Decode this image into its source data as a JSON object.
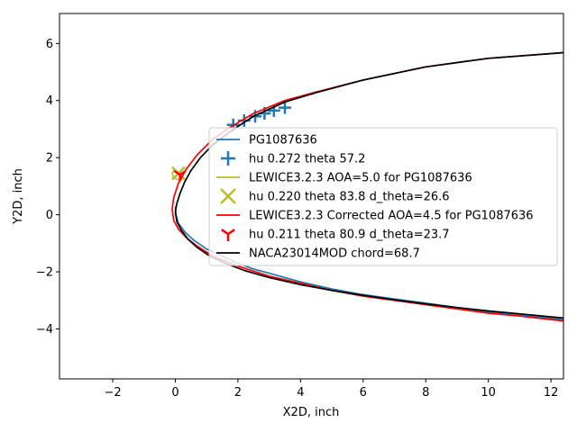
{
  "chart_data": {
    "type": "line",
    "title": "",
    "xlabel": "X2D, inch",
    "ylabel": "Y2D, inch",
    "xlim": [
      -3.7,
      12.4
    ],
    "ylim": [
      -5.75,
      7.05
    ],
    "xticks": [
      -2,
      0,
      2,
      4,
      6,
      8,
      10,
      12
    ],
    "yticks": [
      -4,
      -2,
      0,
      2,
      4,
      6
    ],
    "grid": false,
    "legend_position": "center-right",
    "series": [
      {
        "name": "PG1087636",
        "style": "line",
        "color": "#1f77b4",
        "x": [
          0.0,
          0.02,
          0.1,
          0.3,
          0.6,
          1.0,
          1.5,
          2.0,
          2.5,
          3.0,
          3.5,
          4.0,
          5.0,
          6.0,
          7.0,
          8.0,
          9.0,
          10.0,
          11.0,
          12.4
        ],
        "y": [
          0.3,
          0.0,
          -0.3,
          -0.6,
          -0.9,
          -1.2,
          -1.45,
          -1.7,
          -1.9,
          -2.05,
          -2.2,
          -2.35,
          -2.6,
          -2.8,
          -2.95,
          -3.1,
          -3.25,
          -3.4,
          -3.5,
          -3.68
        ]
      },
      {
        "name": "hu 0.272 theta 57.2",
        "style": "marker",
        "marker": "plus",
        "color": "#1f77b4",
        "x": [
          1.85,
          2.2,
          2.55,
          2.85,
          3.15,
          3.5
        ],
        "y": [
          3.15,
          3.3,
          3.45,
          3.55,
          3.65,
          3.75
        ]
      },
      {
        "name": "LEWICE3.2.3 AOA=5.0 for PG1087636",
        "style": "line",
        "color": "#bcbd22",
        "x": [
          0.25,
          0.15,
          0.05,
          -0.05,
          -0.1,
          -0.05,
          0.0
        ],
        "y": [
          1.3,
          1.2,
          1.25,
          1.3,
          1.45,
          1.55,
          1.6
        ]
      },
      {
        "name": "hu 0.220 theta 83.8 d_theta=26.6",
        "style": "marker",
        "marker": "x",
        "color": "#bcbd22",
        "x": [
          0.1
        ],
        "y": [
          1.45
        ]
      },
      {
        "name": "LEWICE3.2.3 Corrected AOA=4.5 for PG1087636",
        "style": "line",
        "color": "#ff0000",
        "x": [
          12.4,
          10.0,
          8.0,
          6.0,
          4.5,
          3.5,
          2.5,
          1.8,
          1.2,
          0.7,
          0.35,
          0.1,
          -0.05,
          -0.1,
          -0.05,
          0.1,
          0.35,
          0.7,
          1.2,
          2.0,
          3.0,
          4.0,
          5.0,
          6.0,
          7.0,
          8.0,
          9.0,
          10.0,
          11.0,
          12.4
        ],
        "y": [
          5.68,
          5.48,
          5.18,
          4.72,
          4.3,
          4.0,
          3.55,
          3.1,
          2.65,
          2.1,
          1.6,
          1.1,
          0.6,
          0.2,
          -0.2,
          -0.5,
          -0.8,
          -1.1,
          -1.45,
          -1.8,
          -2.15,
          -2.4,
          -2.65,
          -2.85,
          -3.0,
          -3.15,
          -3.3,
          -3.45,
          -3.55,
          -3.72
        ]
      },
      {
        "name": "hu 0.211 theta 80.9 d_theta=23.7",
        "style": "marker",
        "marker": "tri_down",
        "color": "#ff0000",
        "x": [
          0.15
        ],
        "y": [
          1.4
        ]
      },
      {
        "name": "NACA23014MOD chord=68.7",
        "style": "line",
        "color": "#000000",
        "x": [
          12.4,
          10.0,
          8.0,
          6.0,
          4.5,
          3.5,
          2.5,
          1.8,
          1.2,
          0.8,
          0.5,
          0.3,
          0.15,
          0.05,
          0.0,
          0.05,
          0.2,
          0.4,
          0.7,
          1.1,
          1.6,
          2.2,
          3.0,
          4.0,
          5.0,
          6.0,
          7.0,
          8.0,
          9.0,
          10.0,
          11.0,
          12.4
        ],
        "y": [
          5.68,
          5.48,
          5.18,
          4.72,
          4.28,
          3.95,
          3.45,
          2.95,
          2.45,
          2.0,
          1.55,
          1.15,
          0.75,
          0.4,
          0.1,
          -0.25,
          -0.55,
          -0.85,
          -1.15,
          -1.45,
          -1.7,
          -1.95,
          -2.2,
          -2.45,
          -2.65,
          -2.82,
          -2.98,
          -3.12,
          -3.25,
          -3.37,
          -3.47,
          -3.62
        ]
      }
    ]
  }
}
